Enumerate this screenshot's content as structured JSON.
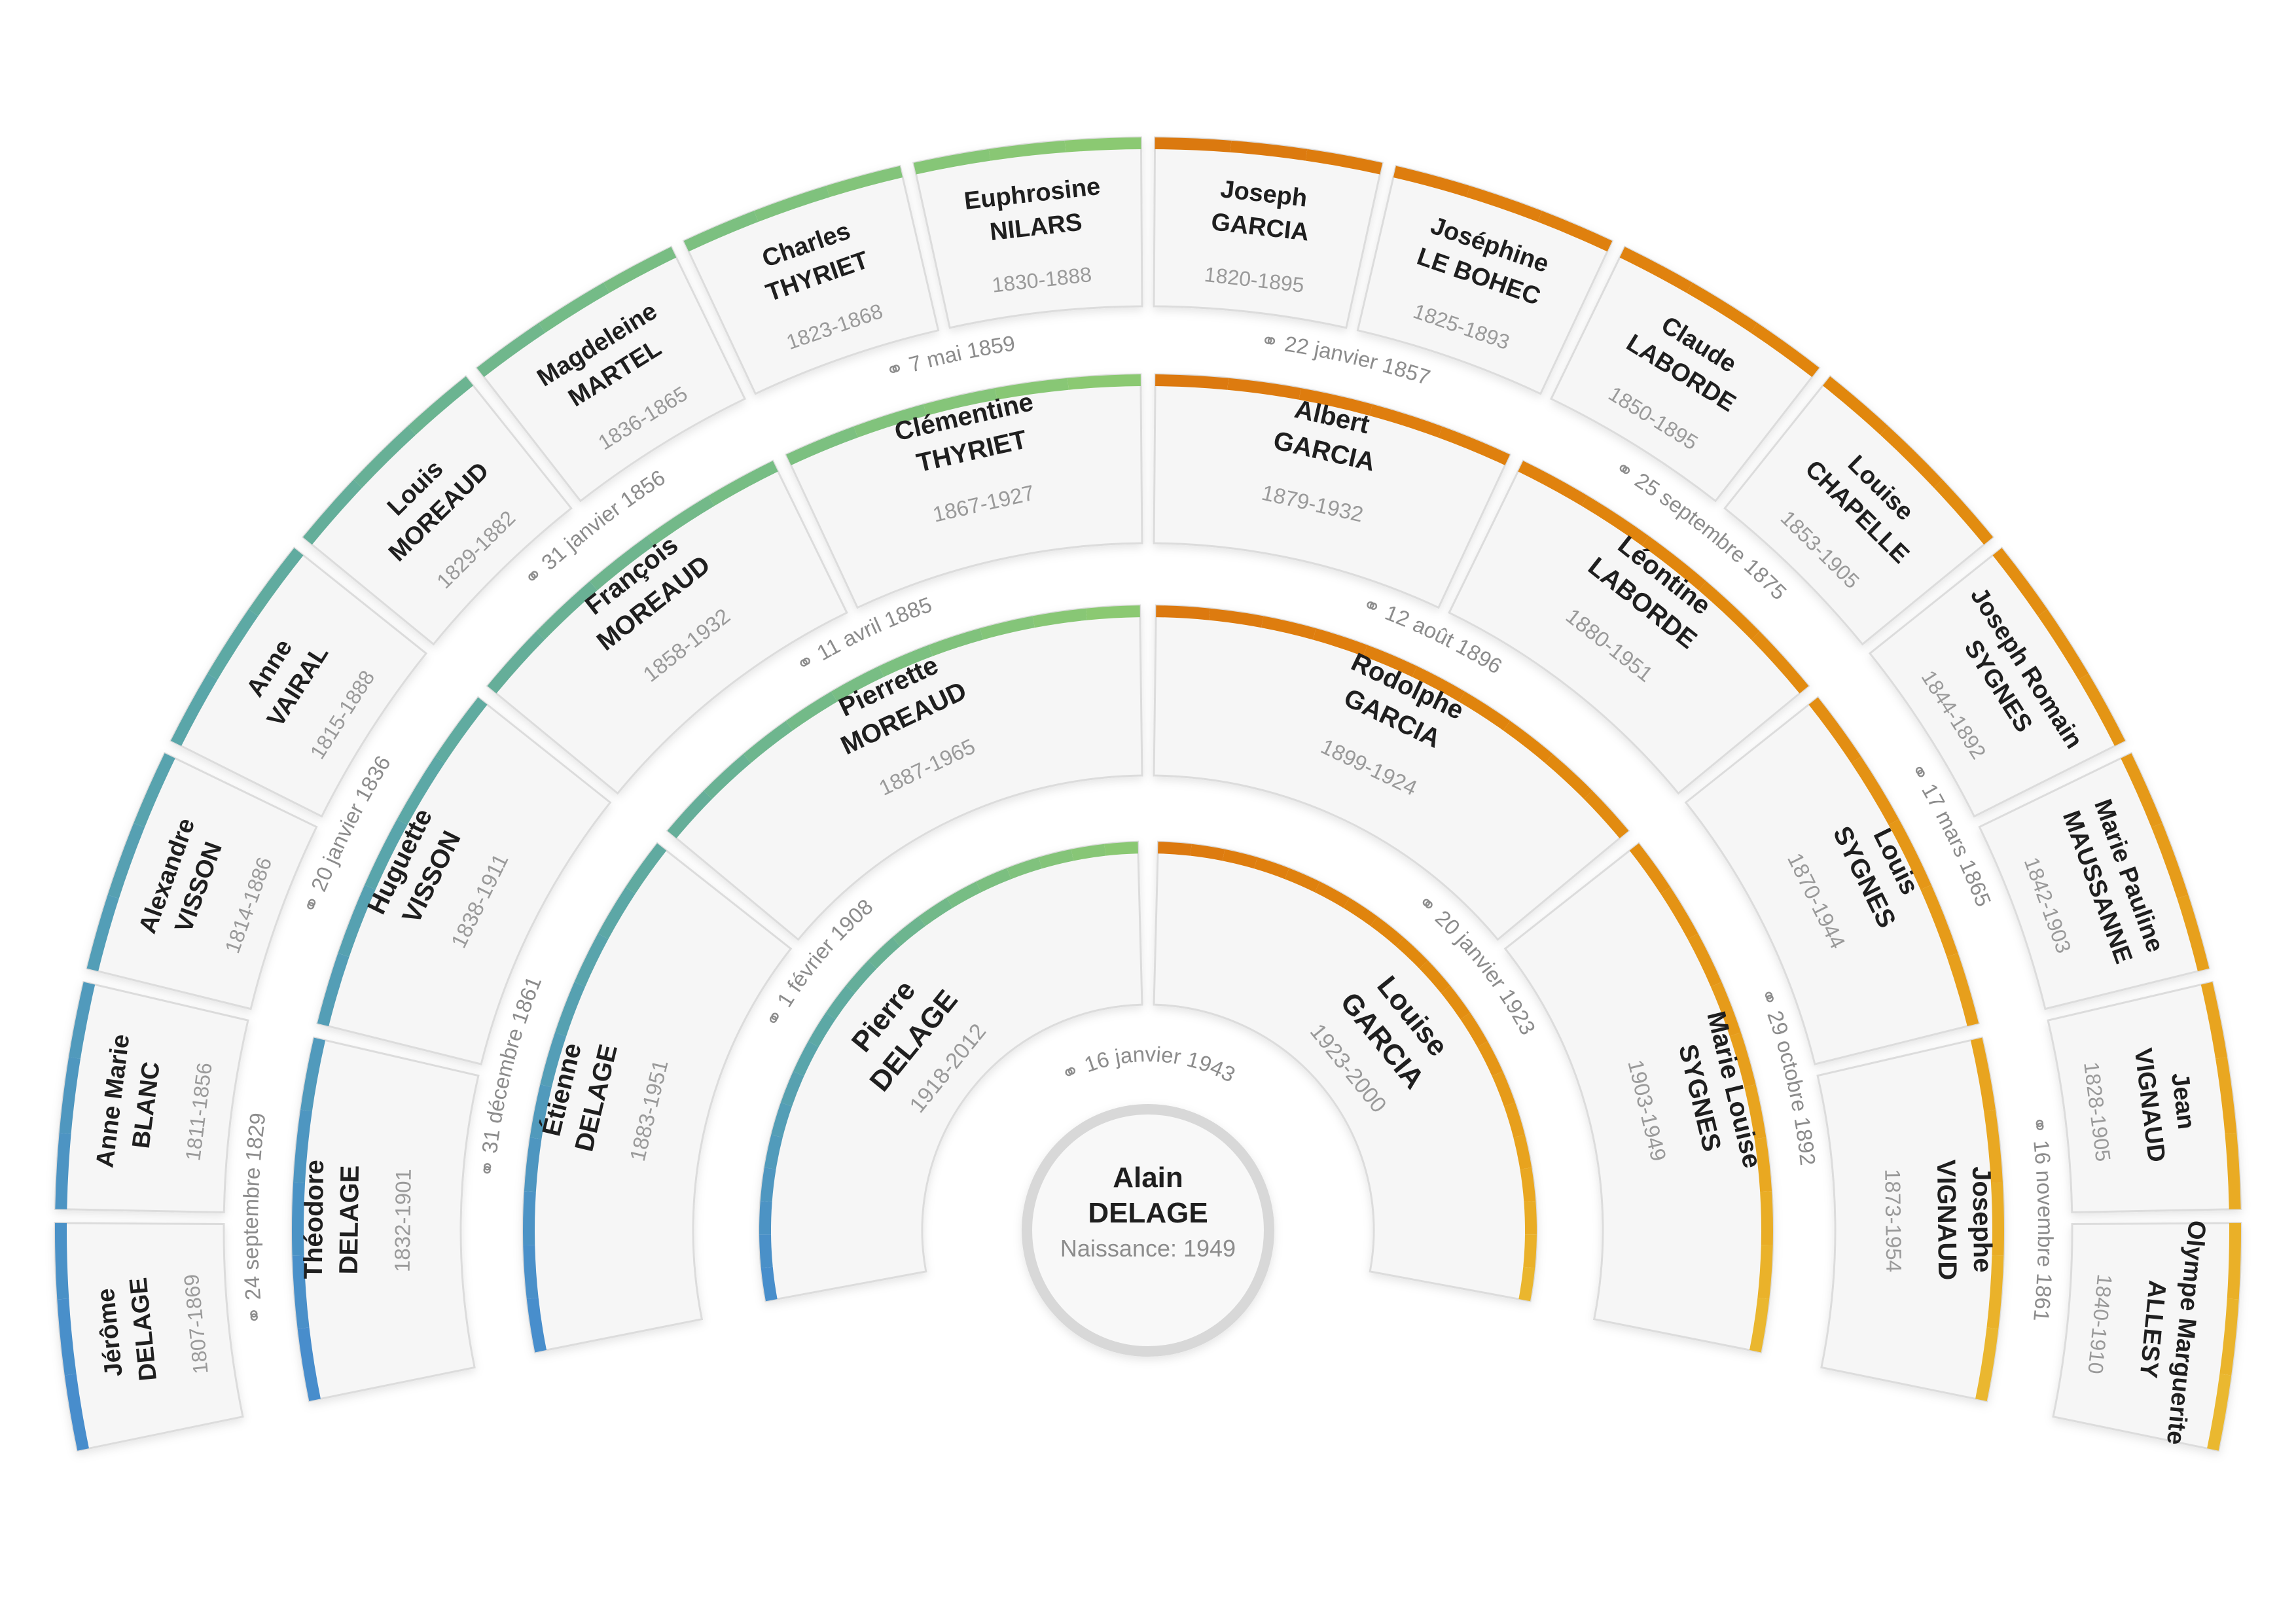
{
  "center": {
    "first_name": "Alain",
    "last_name": "DELAGE",
    "birth_label": "Naissance: 1949"
  },
  "marriage_symbol": "⚭",
  "generations": [
    {
      "ring": 1,
      "people": [
        {
          "first_name": "Pierre",
          "last_name": "DELAGE",
          "years": "1918-2012"
        },
        {
          "first_name": "Louise",
          "last_name": "GARCIA",
          "years": "1923-2000"
        }
      ],
      "marriages": [
        "16 janvier 1943"
      ]
    },
    {
      "ring": 2,
      "people": [
        {
          "first_name": "Étienne",
          "last_name": "DELAGE",
          "years": "1883-1951"
        },
        {
          "first_name": "Pierrette",
          "last_name": "MOREAUD",
          "years": "1887-1965"
        },
        {
          "first_name": "Rodolphe",
          "last_name": "GARCIA",
          "years": "1899-1924"
        },
        {
          "first_name": "Marie Louise",
          "last_name": "SYGNES",
          "years": "1903-1949"
        }
      ],
      "marriages": [
        "1 février 1908",
        "20 janvier 1923"
      ]
    },
    {
      "ring": 3,
      "people": [
        {
          "first_name": "Théodore",
          "last_name": "DELAGE",
          "years": "1832-1901"
        },
        {
          "first_name": "Huguette",
          "last_name": "VISSON",
          "years": "1838-1911"
        },
        {
          "first_name": "François",
          "last_name": "MOREAUD",
          "years": "1858-1932"
        },
        {
          "first_name": "Clémentine",
          "last_name": "THYRIET",
          "years": "1867-1927"
        },
        {
          "first_name": "Albert",
          "last_name": "GARCIA",
          "years": "1879-1932"
        },
        {
          "first_name": "Léontine",
          "last_name": "LABORDE",
          "years": "1880-1951"
        },
        {
          "first_name": "Louis",
          "last_name": "SYGNES",
          "years": "1870-1944"
        },
        {
          "first_name": "Josephe",
          "last_name": "VIGNAUD",
          "years": "1873-1954"
        }
      ],
      "marriages": [
        "31 décembre 1861",
        "11 avril 1885",
        "12 août 1896",
        "29 octobre 1892"
      ]
    },
    {
      "ring": 4,
      "people": [
        {
          "first_name": "Jérôme",
          "last_name": "DELAGE",
          "years": "1807-1869"
        },
        {
          "first_name": "Anne Marie",
          "last_name": "BLANC",
          "years": "1811-1856"
        },
        {
          "first_name": "Alexandre",
          "last_name": "VISSON",
          "years": "1814-1886"
        },
        {
          "first_name": "Anne",
          "last_name": "VAIRAL",
          "years": "1815-1888"
        },
        {
          "first_name": "Louis",
          "last_name": "MOREAUD",
          "years": "1829-1882"
        },
        {
          "first_name": "Magdeleine",
          "last_name": "MARTEL",
          "years": "1836-1865"
        },
        {
          "first_name": "Charles",
          "last_name": "THYRIET",
          "years": "1823-1868"
        },
        {
          "first_name": "Euphrosine",
          "last_name": "NILARS",
          "years": "1830-1888"
        },
        {
          "first_name": "Joseph",
          "last_name": "GARCIA",
          "years": "1820-1895"
        },
        {
          "first_name": "Joséphine",
          "last_name": "LE BOHEC",
          "years": "1825-1893"
        },
        {
          "first_name": "Claude",
          "last_name": "LABORDE",
          "years": "1850-1895"
        },
        {
          "first_name": "Louise",
          "last_name": "CHAPELLE",
          "years": "1853-1905"
        },
        {
          "first_name": "Joseph Romain",
          "last_name": "SYGNES",
          "years": "1844-1892"
        },
        {
          "first_name": "Marie Pauline",
          "last_name": "MAUSSANNE",
          "years": "1842-1903"
        },
        {
          "first_name": "Jean",
          "last_name": "VIGNAUD",
          "years": "1828-1905"
        },
        {
          "first_name": "Olympe Marguerite",
          "last_name": "ALLESY",
          "years": "1840-1910"
        }
      ],
      "marriages": [
        "24 septembre 1829",
        "20 janvier 1836",
        "31 janvier 1856",
        "7 mai 1859",
        "22 janvier 1857",
        "25 septembre 1875",
        "17 mars 1865",
        "16 novembre 1861"
      ]
    }
  ],
  "colors": {
    "segment_fill": "#f6f6f6",
    "segment_border": "#dcdcdc",
    "center_fill": "#f8f8f8",
    "center_border": "#d8d8d8",
    "name_text": "#1f1f1f",
    "year_text": "#9a9a9a",
    "marriage_text": "#8c8c8c",
    "paternal_stops": [
      [
        0,
        "#8dca70"
      ],
      [
        15,
        "#83c47a"
      ],
      [
        30,
        "#76bc85"
      ],
      [
        45,
        "#67b096"
      ],
      [
        60,
        "#5ba7a7"
      ],
      [
        75,
        "#539db8"
      ],
      [
        90,
        "#4b92c6"
      ],
      [
        102,
        "#478cce"
      ]
    ],
    "maternal_stops": [
      [
        0,
        "#db780f"
      ],
      [
        20,
        "#df7f0e"
      ],
      [
        40,
        "#e1870d"
      ],
      [
        55,
        "#e38f12"
      ],
      [
        70,
        "#e69c1a"
      ],
      [
        85,
        "#e9a922"
      ],
      [
        95,
        "#eab32b"
      ],
      [
        102,
        "#eaba33"
      ]
    ]
  }
}
